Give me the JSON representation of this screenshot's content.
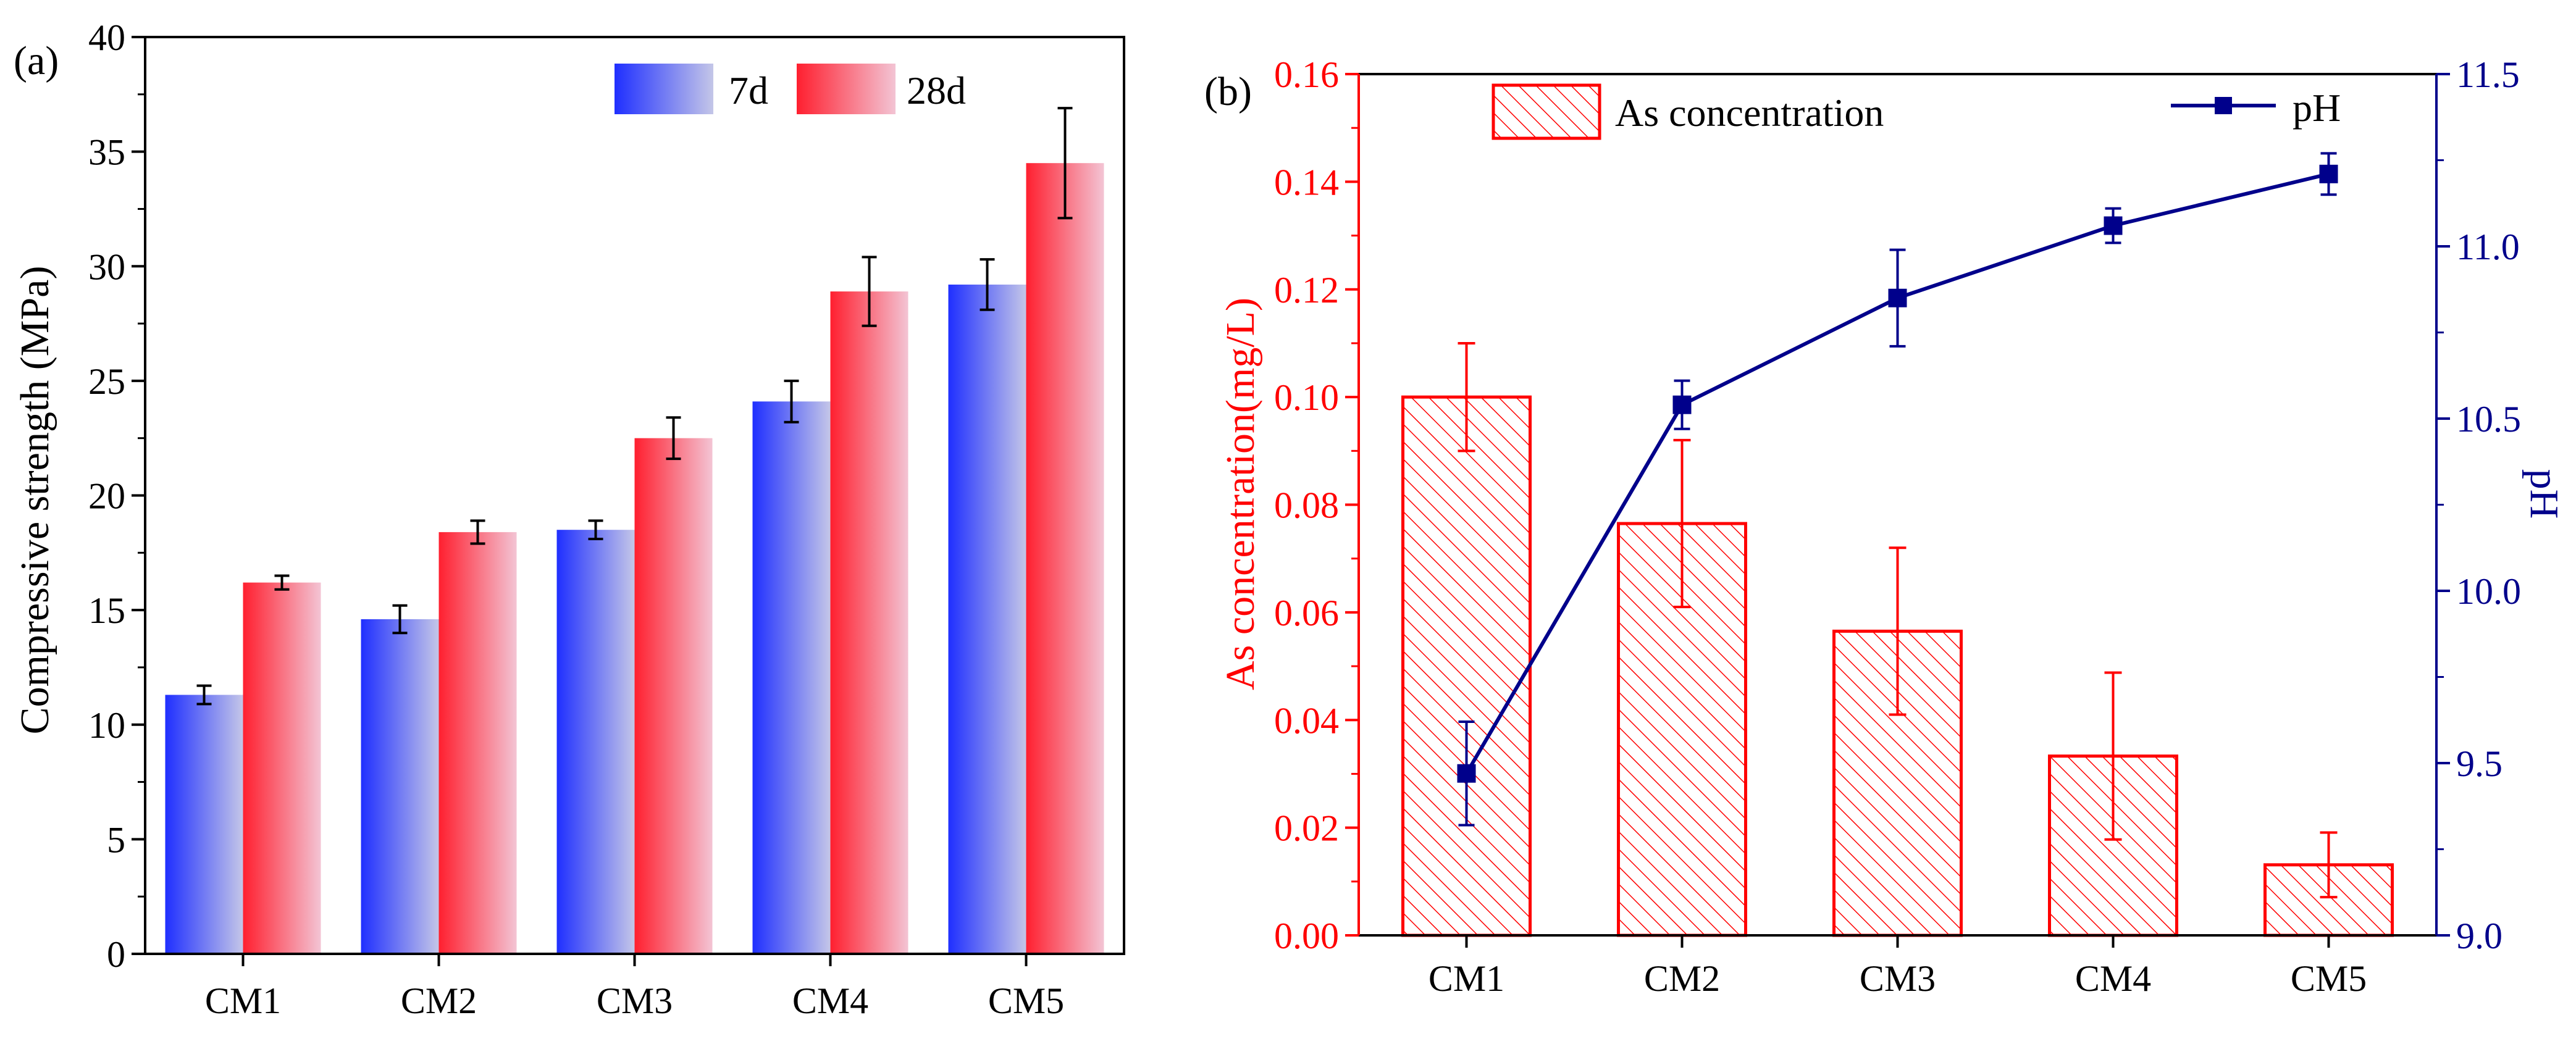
{
  "chart_data": [
    {
      "type": "bar",
      "panel_label": "(a)",
      "ylabel": "Compressive strength (MPa)",
      "xlabel": "",
      "ylim": [
        0,
        40
      ],
      "yticks": [
        0,
        5,
        10,
        15,
        20,
        25,
        30,
        35,
        40
      ],
      "categories": [
        "CM1",
        "CM2",
        "CM3",
        "CM4",
        "CM5"
      ],
      "legend_position": "top-right",
      "series": [
        {
          "name": "7d",
          "color": "#1f2fff",
          "values": [
            11.3,
            14.6,
            18.5,
            24.1,
            29.2
          ],
          "errors": [
            0.4,
            0.6,
            0.4,
            0.9,
            1.1
          ]
        },
        {
          "name": "28d",
          "color": "#ff1f2f",
          "values": [
            16.2,
            18.4,
            22.5,
            28.9,
            34.5
          ],
          "errors": [
            0.3,
            0.5,
            0.9,
            1.5,
            2.4
          ]
        }
      ]
    },
    {
      "type": "bar+line",
      "panel_label": "(b)",
      "categories": [
        "CM1",
        "CM2",
        "CM3",
        "CM4",
        "CM5"
      ],
      "legend_position": "top",
      "left_axis": {
        "label": "As concentration(mg/L)",
        "color": "#ff0000",
        "ylim": [
          0,
          0.16
        ],
        "ticks": [
          "0.00",
          "0.02",
          "0.04",
          "0.06",
          "0.08",
          "0.10",
          "0.12",
          "0.14",
          "0.16"
        ]
      },
      "right_axis": {
        "label": "pH",
        "color": "#00008b",
        "ylim": [
          9.0,
          11.5
        ],
        "ticks": [
          "9.0",
          "9.5",
          "10.0",
          "10.5",
          "11.0",
          "11.5"
        ]
      },
      "bars": {
        "name": "As concentration",
        "color": "#ff0000",
        "values": [
          0.1,
          0.0765,
          0.0565,
          0.0333,
          0.0131
        ],
        "errors": [
          0.01,
          0.0155,
          0.0155,
          0.0155,
          0.006
        ]
      },
      "line": {
        "name": "pH",
        "color": "#00008b",
        "values": [
          9.47,
          10.54,
          10.85,
          11.06,
          11.21
        ],
        "errors": [
          0.15,
          0.07,
          0.14,
          0.05,
          0.06
        ]
      }
    }
  ]
}
